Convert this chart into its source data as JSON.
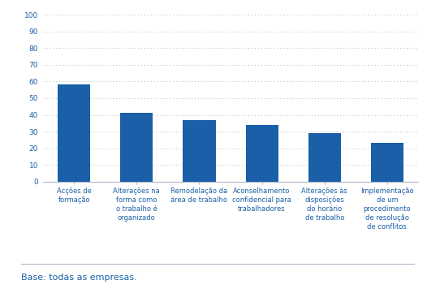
{
  "categories": [
    "Acções de\nformação",
    "Alterações na\nforma como\no trabalho é\norganizado",
    "Remodelação da\nárea de trabalho",
    "Aconselhamento\nconfidencial para\ntrabalhadores",
    "Alterações às\ndisposições\ndo horário\nde trabalho",
    "Implementação\nde um\nprocedimento\nde resolução\nde conflitos"
  ],
  "values": [
    58,
    41,
    37,
    34,
    29,
    23
  ],
  "bar_color": "#1a5fa8",
  "ylim": [
    0,
    100
  ],
  "yticks": [
    0,
    10,
    20,
    30,
    40,
    50,
    60,
    70,
    80,
    90,
    100
  ],
  "grid_color": "#b0b8c8",
  "axis_label_color": "#1a5fa8",
  "tick_label_color": "#1a5fa8",
  "footnote": "Base: todas as empresas.",
  "background_color": "#ffffff"
}
